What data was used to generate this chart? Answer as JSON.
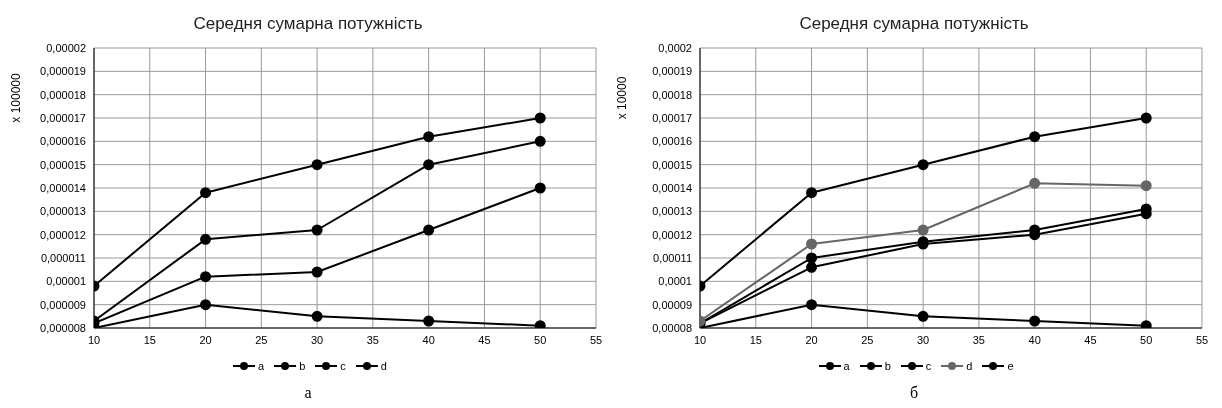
{
  "chart_data": [
    {
      "type": "line",
      "title": "Середня сумарна потужність",
      "ylabel": "x 100000",
      "annotations": [
        "а"
      ],
      "x": [
        10,
        20,
        30,
        40,
        50
      ],
      "series": [
        {
          "name": "a",
          "color": "#000000",
          "values": [
            8e-06,
            9e-06,
            8.5e-06,
            8.3e-06,
            8.1e-06
          ]
        },
        {
          "name": "b",
          "color": "#000000",
          "values": [
            8.2e-06,
            1.02e-05,
            1.04e-05,
            1.22e-05,
            1.4e-05
          ]
        },
        {
          "name": "c",
          "color": "#000000",
          "values": [
            8.3e-06,
            1.18e-05,
            1.22e-05,
            1.5e-05,
            1.6e-05
          ]
        },
        {
          "name": "d",
          "color": "#000000",
          "values": [
            9.8e-06,
            1.38e-05,
            1.5e-05,
            1.62e-05,
            1.7e-05
          ]
        }
      ],
      "xlim": [
        10,
        55
      ],
      "xticks": [
        10,
        15,
        20,
        25,
        30,
        35,
        40,
        45,
        50,
        55
      ],
      "ylim": [
        8e-06,
        2e-05
      ],
      "yticks": [
        {
          "value": 8e-06,
          "label": "0,000008"
        },
        {
          "value": 9e-06,
          "label": "0,000009"
        },
        {
          "value": 1e-05,
          "label": "0,00001"
        },
        {
          "value": 1.1e-05,
          "label": "0,000011"
        },
        {
          "value": 1.2e-05,
          "label": "0,000012"
        },
        {
          "value": 1.3e-05,
          "label": "0,000013"
        },
        {
          "value": 1.4e-05,
          "label": "0,000014"
        },
        {
          "value": 1.5e-05,
          "label": "0,000015"
        },
        {
          "value": 1.6e-05,
          "label": "0,000016"
        },
        {
          "value": 1.7e-05,
          "label": "0,000017"
        },
        {
          "value": 1.8e-05,
          "label": "0,000018"
        },
        {
          "value": 1.9e-05,
          "label": "0,000019"
        },
        {
          "value": 2e-05,
          "label": "0,00002"
        }
      ],
      "grid": true,
      "legend": "bottom",
      "marker": "circle",
      "line_style": "solid"
    },
    {
      "type": "line",
      "title": "Середня сумарна потужність",
      "ylabel": "x 10000",
      "annotations": [
        "б"
      ],
      "x": [
        10,
        20,
        30,
        40,
        50
      ],
      "series": [
        {
          "name": "a",
          "color": "#000000",
          "values": [
            8e-05,
            9e-05,
            8.5e-05,
            8.3e-05,
            8.1e-05
          ]
        },
        {
          "name": "b",
          "color": "#000000",
          "values": [
            8.2e-05,
            0.000106,
            0.000116,
            0.00012,
            0.000129
          ]
        },
        {
          "name": "c",
          "color": "#000000",
          "values": [
            8.2e-05,
            0.00011,
            0.000117,
            0.000122,
            0.000131
          ]
        },
        {
          "name": "d",
          "color": "#666666",
          "values": [
            8.3e-05,
            0.000116,
            0.000122,
            0.000142,
            0.000141
          ]
        },
        {
          "name": "e",
          "color": "#000000",
          "values": [
            9.8e-05,
            0.000138,
            0.00015,
            0.000162,
            0.00017
          ]
        }
      ],
      "xlim": [
        10,
        55
      ],
      "xticks": [
        10,
        15,
        20,
        25,
        30,
        35,
        40,
        45,
        50,
        55
      ],
      "ylim": [
        8e-05,
        0.0002
      ],
      "yticks": [
        {
          "value": 8e-05,
          "label": "0,00008"
        },
        {
          "value": 9e-05,
          "label": "0,00009"
        },
        {
          "value": 0.0001,
          "label": "0,0001"
        },
        {
          "value": 0.00011,
          "label": "0,00011"
        },
        {
          "value": 0.00012,
          "label": "0,00012"
        },
        {
          "value": 0.00013,
          "label": "0,00013"
        },
        {
          "value": 0.00014,
          "label": "0,00014"
        },
        {
          "value": 0.00015,
          "label": "0,00015"
        },
        {
          "value": 0.00016,
          "label": "0,00016"
        },
        {
          "value": 0.00017,
          "label": "0,00017"
        },
        {
          "value": 0.00018,
          "label": "0,00018"
        },
        {
          "value": 0.00019,
          "label": "0,00019"
        },
        {
          "value": 0.0002,
          "label": "0,0002"
        }
      ],
      "grid": true,
      "legend": "bottom",
      "marker": "circle",
      "line_style": "solid"
    }
  ]
}
